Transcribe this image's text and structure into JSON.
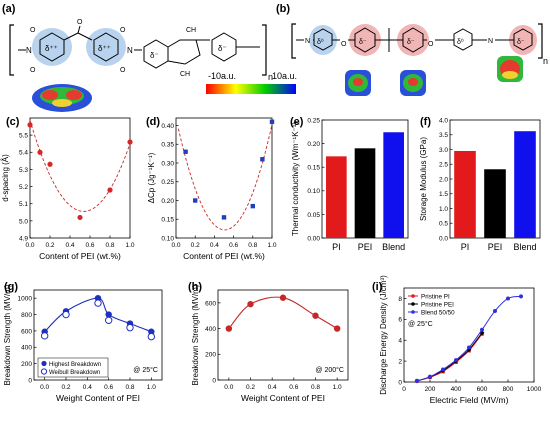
{
  "panel_labels": [
    "(a)",
    "(b)",
    "(c)",
    "(d)",
    "(e)",
    "(f)",
    "(g)",
    "(h)",
    "(i)"
  ],
  "top": {
    "scale_min": "-10a.u.",
    "scale_max": "10a.u.",
    "n_sub": "n",
    "ch3": "CH",
    "ch3_sub": "3",
    "d_pp": "δ⁺⁺",
    "d_p": "δ⁺",
    "d_m": "δ⁻",
    "d_0": "δ⁰",
    "atom_o": "O",
    "atom_n": "N",
    "colors": {
      "blue_region": "#b9d3ee",
      "pink_region": "#f2b5b5",
      "scale_gradient": [
        "#ff0000",
        "#ffff00",
        "#00cc00",
        "#0000ff"
      ]
    }
  },
  "chart_data": [
    {
      "panel": "(c)",
      "type": "scatter",
      "xlabel": "Content of PEI (wt.%)",
      "ylabel": "d-spacing (Å)",
      "xlim": [
        0.0,
        1.0
      ],
      "ylim": [
        4.9,
        5.6
      ],
      "xticks": [
        "0.0",
        "0.2",
        "0.4",
        "0.6",
        "0.8",
        "1.0"
      ],
      "yticks": [
        "4.9",
        "5.0",
        "5.1",
        "5.2",
        "5.3",
        "5.4",
        "5.5"
      ],
      "series": [
        {
          "x": [
            0.0,
            0.1,
            0.2,
            0.5,
            0.8,
            1.0
          ],
          "y": [
            5.56,
            5.4,
            5.33,
            5.02,
            5.18,
            5.46
          ]
        }
      ],
      "fit": "quadratic",
      "color": "#d62728"
    },
    {
      "panel": "(d)",
      "type": "scatter",
      "xlabel": "Content of PEI (wt.%)",
      "ylabel": "ΔCp (Jg⁻¹K⁻¹)",
      "xlim": [
        0.0,
        1.0
      ],
      "ylim": [
        0.1,
        0.42
      ],
      "xticks": [
        "0.0",
        "0.2",
        "0.4",
        "0.6",
        "0.8",
        "1.0"
      ],
      "yticks": [
        "0.10",
        "0.15",
        "0.20",
        "0.25",
        "0.30",
        "0.35",
        "0.40"
      ],
      "series": [
        {
          "x": [
            0.1,
            0.2,
            0.5,
            0.8,
            0.9,
            1.0
          ],
          "y": [
            0.33,
            0.2,
            0.155,
            0.185,
            0.31,
            0.41
          ]
        }
      ],
      "fit": "quadratic",
      "color": "#1f3fbf"
    },
    {
      "panel": "(e)",
      "type": "bar",
      "ylabel": "Thermal conductivity (Wm⁻¹K⁻¹)",
      "categories": [
        "PI",
        "PEI",
        "Blend"
      ],
      "values": [
        0.173,
        0.19,
        0.224
      ],
      "colors": [
        "#e31a1c",
        "#000000",
        "#1010ee"
      ],
      "ylim": [
        0.0,
        0.25
      ],
      "yticks": [
        "0.00",
        "0.05",
        "0.10",
        "0.15",
        "0.20",
        "0.25"
      ]
    },
    {
      "panel": "(f)",
      "type": "bar",
      "ylabel": "Storage Modulus (GPa)",
      "categories": [
        "PI",
        "PEI",
        "Blend"
      ],
      "values": [
        2.95,
        2.33,
        3.62
      ],
      "colors": [
        "#e31a1c",
        "#000000",
        "#1010ee"
      ],
      "ylim": [
        0.0,
        4.0
      ],
      "yticks": [
        "0.0",
        "0.5",
        "1.0",
        "1.5",
        "2.0",
        "2.5",
        "3.0",
        "3.5",
        "4.0"
      ]
    },
    {
      "panel": "(g)",
      "type": "line",
      "xlabel": "Weight Content of PEI",
      "ylabel": "Breakdown Strength (MV/m)",
      "xlim": [
        -0.1,
        1.1
      ],
      "ylim": [
        0,
        1100
      ],
      "xticks": [
        "0.0",
        "0.2",
        "0.4",
        "0.6",
        "0.8",
        "1.0"
      ],
      "yticks": [
        "0",
        "200",
        "400",
        "600",
        "800",
        "1000"
      ],
      "series": [
        {
          "name": "Highest Breakdown",
          "x": [
            0.0,
            0.2,
            0.5,
            0.6,
            0.8,
            1.0
          ],
          "y": [
            590,
            840,
            1000,
            800,
            690,
            590
          ]
        },
        {
          "name": "Weibull Breakdown",
          "x": [
            0.0,
            0.2,
            0.5,
            0.6,
            0.8,
            1.0
          ],
          "y": [
            540,
            800,
            940,
            730,
            640,
            530
          ]
        }
      ],
      "annotation": "@ 25°C",
      "legend": "bottom-left",
      "color": "#1f2fbf"
    },
    {
      "panel": "(h)",
      "type": "line",
      "xlabel": "Weight Content of PEI",
      "ylabel": "Breakdown Strength (MV/m)",
      "xlim": [
        -0.1,
        1.1
      ],
      "ylim": [
        0,
        700
      ],
      "xticks": [
        "0.0",
        "0.2",
        "0.4",
        "0.6",
        "0.8",
        "1.0"
      ],
      "yticks": [
        "0",
        "200",
        "400",
        "600"
      ],
      "series": [
        {
          "x": [
            0.0,
            0.2,
            0.5,
            0.8,
            1.0
          ],
          "y": [
            400,
            590,
            640,
            500,
            400
          ]
        }
      ],
      "annotation": "@ 200°C",
      "color": "#c62828"
    },
    {
      "panel": "(i)",
      "type": "line",
      "xlabel": "Electric Field (MV/m)",
      "ylabel": "Discharge Energy Density (J/cm³)",
      "xlim": [
        0,
        1000
      ],
      "ylim": [
        0,
        9
      ],
      "xticks": [
        "0",
        "200",
        "400",
        "600",
        "800",
        "1000"
      ],
      "yticks": [
        "0",
        "2",
        "4",
        "6",
        "8"
      ],
      "series": [
        {
          "name": "Pristine PI",
          "color": "#e31a1c",
          "x": [
            100,
            200,
            300,
            400,
            500,
            600
          ],
          "y": [
            0.1,
            0.45,
            1.0,
            1.9,
            3.0,
            4.6
          ]
        },
        {
          "name": "Pristine PEI",
          "color": "#000000",
          "x": [
            100,
            200,
            300,
            400,
            500,
            600
          ],
          "y": [
            0.1,
            0.5,
            1.1,
            2.0,
            3.1,
            4.7
          ]
        },
        {
          "name": "Blend 50/50",
          "color": "#3030dd",
          "x": [
            100,
            200,
            300,
            400,
            500,
            600,
            700,
            800,
            900
          ],
          "y": [
            0.1,
            0.5,
            1.2,
            2.1,
            3.3,
            5.0,
            6.8,
            8.0,
            8.2
          ]
        }
      ],
      "annotation": "@ 25°C",
      "legend": "top-left"
    }
  ]
}
